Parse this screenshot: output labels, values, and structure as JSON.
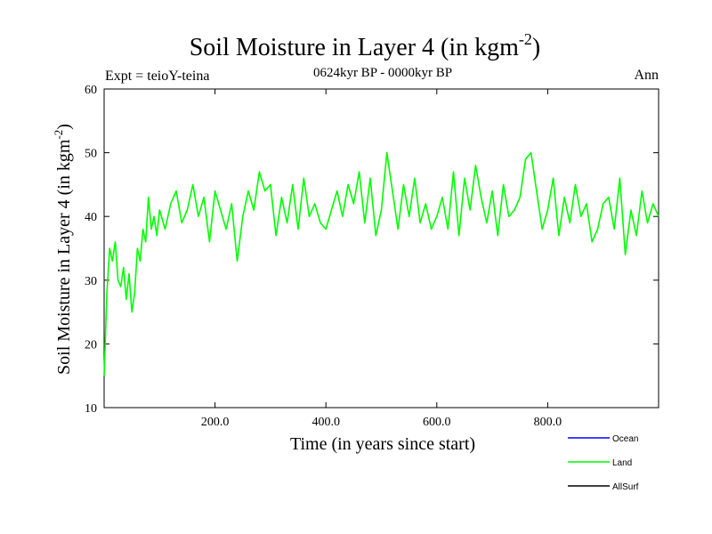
{
  "chart_data": {
    "type": "line",
    "title": "Soil Moisture in Layer 4 (in kgm",
    "title_sup": "-2",
    "title_close": ")",
    "subtitle": "0624kyr BP - 0000kyr BP",
    "left_note": "Expt = teioY-teina",
    "right_note": "Ann",
    "xlabel": "Time (in years since start)",
    "ylabel": "Soil Moisture in Layer 4 (in kgm",
    "ylabel_sup": "-2",
    "ylabel_close": ")",
    "xlim": [
      0,
      1000
    ],
    "ylim": [
      10,
      60
    ],
    "xticks": [
      200,
      400,
      600,
      800
    ],
    "xtick_labels": [
      "200.0",
      "400.0",
      "600.0",
      "800.0"
    ],
    "yticks": [
      10,
      20,
      30,
      40,
      50,
      60
    ],
    "ytick_labels": [
      "10",
      "20",
      "30",
      "40",
      "50",
      "60"
    ],
    "legend_placement": "bottom-right",
    "series": [
      {
        "name": "Ocean",
        "color": "#0000ff",
        "x": [],
        "values": []
      },
      {
        "name": "Land",
        "color": "#00ff00",
        "x": [
          0,
          5,
          10,
          15,
          20,
          25,
          30,
          35,
          40,
          45,
          50,
          55,
          60,
          65,
          70,
          75,
          80,
          85,
          90,
          95,
          100,
          110,
          120,
          130,
          140,
          150,
          160,
          170,
          180,
          190,
          200,
          210,
          220,
          230,
          240,
          250,
          260,
          270,
          280,
          290,
          300,
          310,
          320,
          330,
          340,
          350,
          360,
          370,
          380,
          390,
          400,
          410,
          420,
          430,
          440,
          450,
          460,
          470,
          480,
          490,
          500,
          510,
          520,
          530,
          540,
          550,
          560,
          570,
          580,
          590,
          600,
          610,
          620,
          630,
          640,
          650,
          660,
          670,
          680,
          690,
          700,
          710,
          720,
          730,
          740,
          750,
          760,
          770,
          780,
          790,
          800,
          810,
          820,
          830,
          840,
          850,
          860,
          870,
          880,
          890,
          900,
          910,
          920,
          930,
          940,
          950,
          960,
          970,
          980,
          990,
          1000
        ],
        "values": [
          15,
          28,
          35,
          33,
          36,
          30,
          29,
          32,
          27,
          31,
          25,
          28,
          35,
          33,
          38,
          36,
          43,
          38,
          40,
          37,
          41,
          38,
          42,
          44,
          39,
          41,
          45,
          40,
          43,
          36,
          44,
          41,
          38,
          42,
          33,
          40,
          44,
          41,
          47,
          44,
          45,
          37,
          43,
          39,
          45,
          38,
          46,
          40,
          42,
          39,
          38,
          41,
          44,
          40,
          45,
          42,
          47,
          39,
          46,
          37,
          41,
          50,
          44,
          38,
          45,
          40,
          46,
          39,
          42,
          38,
          40,
          43,
          38,
          47,
          37,
          46,
          41,
          48,
          43,
          39,
          44,
          37,
          45,
          40,
          41,
          43,
          49,
          50,
          44,
          38,
          41,
          46,
          37,
          43,
          39,
          45,
          40,
          42,
          36,
          38,
          42,
          43,
          38,
          46,
          34,
          41,
          37,
          44,
          39,
          42,
          40
        ]
      },
      {
        "name": "AllSurf",
        "color": "#000000",
        "x": [],
        "values": []
      }
    ]
  }
}
